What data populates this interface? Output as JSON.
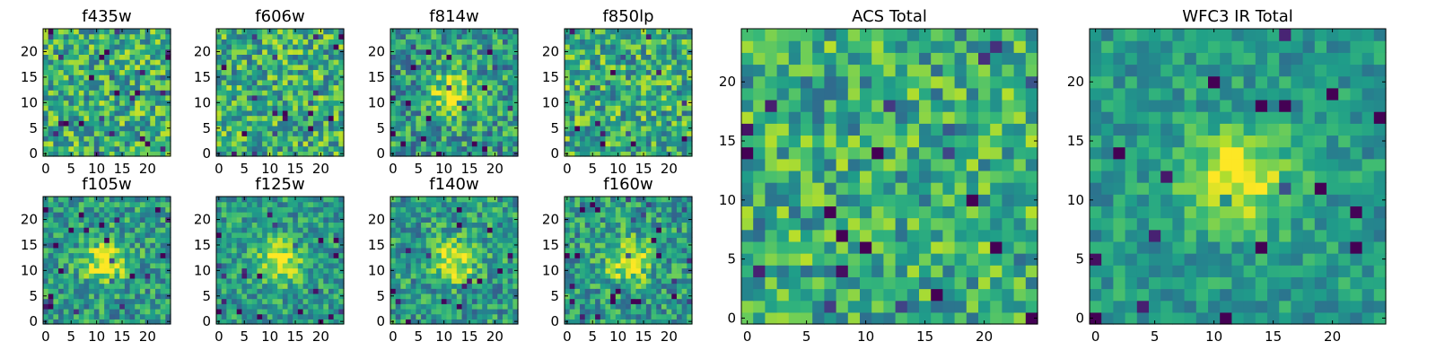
{
  "chart_data": [
    {
      "type": "heatmap",
      "title": "f435w",
      "grid_size": 25,
      "xticks": [
        0,
        5,
        10,
        15,
        20
      ],
      "yticks": [
        0,
        5,
        10,
        15,
        20
      ],
      "xlim": [
        -0.5,
        24.5
      ],
      "ylim": [
        -0.5,
        24.5
      ],
      "colormap": "viridis",
      "source_centered": false,
      "noise": 0.55
    },
    {
      "type": "heatmap",
      "title": "f606w",
      "grid_size": 25,
      "xticks": [
        0,
        5,
        10,
        15,
        20
      ],
      "yticks": [
        0,
        5,
        10,
        15,
        20
      ],
      "xlim": [
        -0.5,
        24.5
      ],
      "ylim": [
        -0.5,
        24.5
      ],
      "colormap": "viridis",
      "source_centered": false,
      "noise": 0.55
    },
    {
      "type": "heatmap",
      "title": "f814w",
      "grid_size": 25,
      "xticks": [
        0,
        5,
        10,
        15,
        20
      ],
      "yticks": [
        0,
        5,
        10,
        15,
        20
      ],
      "xlim": [
        -0.5,
        24.5
      ],
      "ylim": [
        -0.5,
        24.5
      ],
      "colormap": "viridis",
      "source_centered": true,
      "noise": 0.5
    },
    {
      "type": "heatmap",
      "title": "f850lp",
      "grid_size": 25,
      "xticks": [
        0,
        5,
        10,
        15,
        20
      ],
      "yticks": [
        0,
        5,
        10,
        15,
        20
      ],
      "xlim": [
        -0.5,
        24.5
      ],
      "ylim": [
        -0.5,
        24.5
      ],
      "colormap": "viridis",
      "source_centered": false,
      "noise": 0.55
    },
    {
      "type": "heatmap",
      "title": "f105w",
      "grid_size": 25,
      "xticks": [
        0,
        5,
        10,
        15,
        20
      ],
      "yticks": [
        0,
        5,
        10,
        15,
        20
      ],
      "xlim": [
        -0.5,
        24.5
      ],
      "ylim": [
        -0.5,
        24.5
      ],
      "colormap": "viridis",
      "source_centered": true,
      "noise": 0.45
    },
    {
      "type": "heatmap",
      "title": "f125w",
      "grid_size": 25,
      "xticks": [
        0,
        5,
        10,
        15,
        20
      ],
      "yticks": [
        0,
        5,
        10,
        15,
        20
      ],
      "xlim": [
        -0.5,
        24.5
      ],
      "ylim": [
        -0.5,
        24.5
      ],
      "colormap": "viridis",
      "source_centered": true,
      "noise": 0.4
    },
    {
      "type": "heatmap",
      "title": "f140w",
      "grid_size": 25,
      "xticks": [
        0,
        5,
        10,
        15,
        20
      ],
      "yticks": [
        0,
        5,
        10,
        15,
        20
      ],
      "xlim": [
        -0.5,
        24.5
      ],
      "ylim": [
        -0.5,
        24.5
      ],
      "colormap": "viridis",
      "source_centered": true,
      "noise": 0.45
    },
    {
      "type": "heatmap",
      "title": "f160w",
      "grid_size": 25,
      "xticks": [
        0,
        5,
        10,
        15,
        20
      ],
      "yticks": [
        0,
        5,
        10,
        15,
        20
      ],
      "xlim": [
        -0.5,
        24.5
      ],
      "ylim": [
        -0.5,
        24.5
      ],
      "colormap": "viridis",
      "source_centered": true,
      "noise": 0.45
    },
    {
      "type": "heatmap",
      "title": "ACS Total",
      "grid_size": 25,
      "xticks": [
        0,
        5,
        10,
        15,
        20
      ],
      "yticks": [
        0,
        5,
        10,
        15,
        20
      ],
      "xlim": [
        -0.5,
        24.5
      ],
      "ylim": [
        -0.5,
        24.5
      ],
      "colormap": "viridis",
      "source_centered": false,
      "noise": 0.5
    },
    {
      "type": "heatmap",
      "title": "WFC3 IR Total",
      "grid_size": 25,
      "xticks": [
        0,
        5,
        10,
        15,
        20
      ],
      "yticks": [
        0,
        5,
        10,
        15,
        20
      ],
      "xlim": [
        -0.5,
        24.5
      ],
      "ylim": [
        -0.5,
        24.5
      ],
      "colormap": "viridis",
      "source_centered": true,
      "noise": 0.3
    }
  ]
}
